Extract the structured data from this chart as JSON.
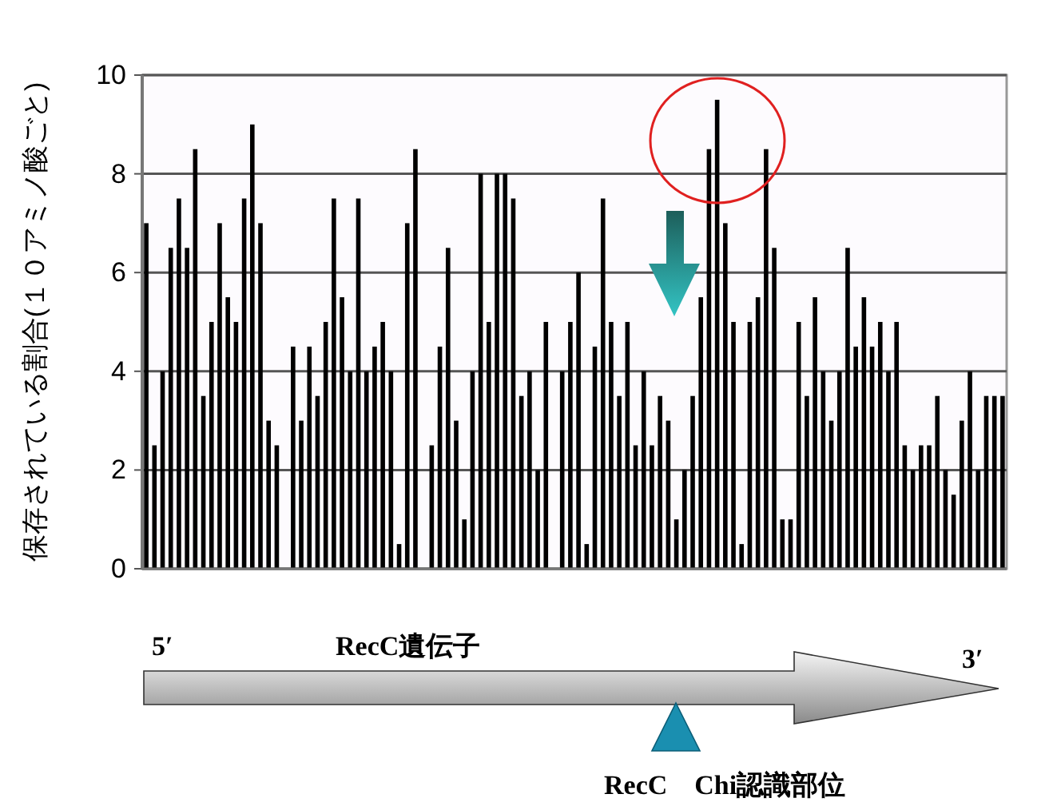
{
  "chart_data": {
    "type": "bar",
    "ylabel": "保存されている割合(１０アミノ酸ごと)",
    "categories": [
      null,
      null,
      null,
      null,
      null,
      null,
      null,
      null,
      null,
      null,
      null,
      null,
      null,
      null,
      null,
      null,
      null,
      null,
      null,
      null,
      null,
      null,
      null,
      null,
      null,
      null,
      null,
      null,
      null,
      null,
      null,
      null,
      null,
      null,
      null,
      null,
      null,
      null,
      null,
      null,
      null,
      null,
      null,
      null,
      null,
      null,
      null,
      null,
      null,
      null,
      null,
      null,
      null,
      null,
      null,
      null,
      null,
      null,
      null,
      null,
      null,
      null,
      null,
      null,
      null,
      null,
      null,
      null,
      null,
      null,
      null,
      null,
      null,
      null,
      null,
      null,
      null,
      null,
      null,
      null,
      null,
      null,
      null,
      null,
      null,
      null,
      null,
      null,
      null,
      null,
      null,
      null,
      null,
      null,
      null,
      null,
      null,
      null,
      null,
      null,
      null,
      null,
      null,
      null,
      null,
      null
    ],
    "values": [
      7,
      2.5,
      4,
      6.5,
      7.5,
      6.5,
      8.5,
      3.5,
      5,
      7,
      5.5,
      5,
      7.5,
      9,
      7,
      3,
      2.5,
      0,
      4.5,
      3,
      4.5,
      3.5,
      5,
      7.5,
      5.5,
      4,
      7.5,
      4,
      4.5,
      5,
      4,
      0.5,
      7,
      8.5,
      0,
      2.5,
      4.5,
      6.5,
      3,
      1,
      4,
      8,
      5,
      8,
      8,
      7.5,
      3.5,
      4,
      2,
      5,
      0,
      4,
      5,
      6,
      0.5,
      4.5,
      7.5,
      5,
      3.5,
      5,
      2.5,
      4,
      2.5,
      3.5,
      3,
      1,
      2,
      3.5,
      5.5,
      8.5,
      9.5,
      7,
      5,
      0.5,
      5,
      5.5,
      8.5,
      6.5,
      1,
      1,
      5,
      3.5,
      5.5,
      4,
      3,
      4,
      6.5,
      4.5,
      5.5,
      4.5,
      5,
      4,
      5,
      2.5,
      2,
      2.5,
      2.5,
      3.5,
      2,
      1.5,
      3,
      4,
      2,
      3.5,
      3.5,
      3.5
    ],
    "color": "#000000",
    "ylim": [
      0,
      10
    ],
    "yticks": [
      0,
      2,
      4,
      6,
      8,
      10
    ],
    "grid": "y",
    "annotations": [
      "5′",
      "RecC遺伝子",
      "3′",
      "RecC　Chi認識部位"
    ]
  }
}
